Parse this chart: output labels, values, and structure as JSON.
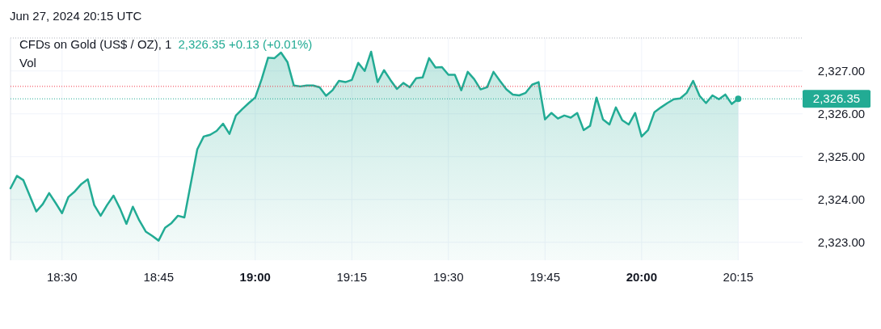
{
  "chart_data": {
    "type": "area",
    "title": "CFDs on Gold (US$ / OZ), 1",
    "subtitle": "Jun 27, 2024 20:15 UTC",
    "annotations": [
      "2,326.35  +0.13 (+0.01%)",
      "Vol"
    ],
    "x": [
      "2024-06-27T18:22",
      "2024-06-27T18:23",
      "2024-06-27T18:24",
      "2024-06-27T18:26",
      "2024-06-27T18:27",
      "2024-06-27T18:28",
      "2024-06-27T18:29",
      "2024-06-27T18:30",
      "2024-06-27T18:31",
      "2024-06-27T18:32",
      "2024-06-27T18:33",
      "2024-06-27T18:34",
      "2024-06-27T18:35",
      "2024-06-27T18:36",
      "2024-06-27T18:37",
      "2024-06-27T18:38",
      "2024-06-27T18:39",
      "2024-06-27T18:40",
      "2024-06-27T18:41",
      "2024-06-27T18:42",
      "2024-06-27T18:43",
      "2024-06-27T18:44",
      "2024-06-27T18:45",
      "2024-06-27T18:46",
      "2024-06-27T18:47",
      "2024-06-27T18:48",
      "2024-06-27T18:49",
      "2024-06-27T18:51",
      "2024-06-27T18:52",
      "2024-06-27T18:53",
      "2024-06-27T18:54",
      "2024-06-27T18:55",
      "2024-06-27T18:56",
      "2024-06-27T18:57",
      "2024-06-27T18:58",
      "2024-06-27T18:59",
      "2024-06-27T19:00",
      "2024-06-27T19:01",
      "2024-06-27T19:02",
      "2024-06-27T19:03",
      "2024-06-27T19:04",
      "2024-06-27T19:05",
      "2024-06-27T19:06",
      "2024-06-27T19:07",
      "2024-06-27T19:08",
      "2024-06-27T19:09",
      "2024-06-27T19:10",
      "2024-06-27T19:11",
      "2024-06-27T19:12",
      "2024-06-27T19:13",
      "2024-06-27T19:14",
      "2024-06-27T19:15",
      "2024-06-27T19:16",
      "2024-06-27T19:17",
      "2024-06-27T19:18",
      "2024-06-27T19:19",
      "2024-06-27T19:20",
      "2024-06-27T19:21",
      "2024-06-27T19:22",
      "2024-06-27T19:23",
      "2024-06-27T19:24",
      "2024-06-27T19:25",
      "2024-06-27T19:26",
      "2024-06-27T19:27",
      "2024-06-27T19:28",
      "2024-06-27T19:29",
      "2024-06-27T19:30",
      "2024-06-27T19:31",
      "2024-06-27T19:32",
      "2024-06-27T19:33",
      "2024-06-27T19:34",
      "2024-06-27T19:35",
      "2024-06-27T19:36",
      "2024-06-27T19:37",
      "2024-06-27T19:38",
      "2024-06-27T19:39",
      "2024-06-27T19:40",
      "2024-06-27T19:41",
      "2024-06-27T19:42",
      "2024-06-27T19:43",
      "2024-06-27T19:44",
      "2024-06-27T19:45",
      "2024-06-27T19:46",
      "2024-06-27T19:47",
      "2024-06-27T19:48",
      "2024-06-27T19:49",
      "2024-06-27T19:50",
      "2024-06-27T19:51",
      "2024-06-27T19:52",
      "2024-06-27T19:53",
      "2024-06-27T19:54",
      "2024-06-27T19:55",
      "2024-06-27T19:56",
      "2024-06-27T19:57",
      "2024-06-27T19:58",
      "2024-06-27T19:59",
      "2024-06-27T20:00",
      "2024-06-27T20:01",
      "2024-06-27T20:02",
      "2024-06-27T20:03",
      "2024-06-27T20:04",
      "2024-06-27T20:05",
      "2024-06-27T20:06",
      "2024-06-27T20:07",
      "2024-06-27T20:08",
      "2024-06-27T20:09",
      "2024-06-27T20:10",
      "2024-06-27T20:11",
      "2024-06-27T20:12",
      "2024-06-27T20:13",
      "2024-06-27T20:14",
      "2024-06-27T20:15"
    ],
    "series": [
      {
        "color": "#22ab94",
        "values": [
          2324.26,
          2324.55,
          2324.45,
          2323.72,
          2323.89,
          2324.15,
          2323.92,
          2323.68,
          2324.06,
          2324.19,
          2324.36,
          2324.47,
          2323.87,
          2323.62,
          2323.87,
          2324.09,
          2323.79,
          2323.43,
          2323.83,
          2323.51,
          2323.25,
          2323.15,
          2323.04,
          2323.34,
          2323.45,
          2323.62,
          2323.58,
          2325.17,
          2325.47,
          2325.51,
          2325.6,
          2325.77,
          2325.53,
          2325.96,
          2326.11,
          2326.25,
          2326.38,
          2326.81,
          2327.31,
          2327.3,
          2327.43,
          2327.21,
          2326.66,
          2326.64,
          2326.66,
          2326.66,
          2326.62,
          2326.42,
          2326.55,
          2326.77,
          2326.74,
          2326.79,
          2327.19,
          2327.0,
          2327.45,
          2326.74,
          2327.02,
          2326.79,
          2326.58,
          2326.72,
          2326.62,
          2326.83,
          2326.85,
          2327.3,
          2327.08,
          2327.09,
          2326.91,
          2326.91,
          2326.55,
          2326.98,
          2326.81,
          2326.57,
          2326.62,
          2326.98,
          2326.77,
          2326.57,
          2326.45,
          2326.43,
          2326.49,
          2326.68,
          2326.74,
          2325.87,
          2326.02,
          2325.89,
          2325.96,
          2325.91,
          2326.02,
          2325.62,
          2325.72,
          2326.38,
          2325.87,
          2325.75,
          2326.15,
          2325.85,
          2325.75,
          2326.02,
          2325.47,
          2325.62,
          2326.04,
          2326.15,
          2326.25,
          2326.34,
          2326.36,
          2326.49,
          2326.77,
          2326.42,
          2326.25,
          2326.43,
          2326.34,
          2326.45,
          2326.23,
          2326.35
        ]
      }
    ],
    "xlim": [
      "2024-06-27T18:22",
      "2024-06-27T20:25"
    ],
    "xticks": [
      {
        "value": "2024-06-27T18:30",
        "label": "18:30"
      },
      {
        "value": "2024-06-27T18:45",
        "label": "18:45"
      },
      {
        "value": "2024-06-27T19:00",
        "label": "19:00"
      },
      {
        "value": "2024-06-27T19:15",
        "label": "19:15"
      },
      {
        "value": "2024-06-27T19:30",
        "label": "19:30"
      },
      {
        "value": "2024-06-27T19:45",
        "label": "19:45"
      },
      {
        "value": "2024-06-27T20:00",
        "label": "20:00"
      },
      {
        "value": "2024-06-27T20:15",
        "label": "20:15"
      }
    ],
    "ylim": [
      2322.58,
      2327.77
    ],
    "yticks": [
      {
        "value": 2323,
        "label": "2,323.00"
      },
      {
        "value": 2324,
        "label": "2,324.00"
      },
      {
        "value": 2325,
        "label": "2,325.00"
      },
      {
        "value": 2326,
        "label": "2,326.00"
      },
      {
        "value": 2327,
        "label": "2,327.00"
      }
    ],
    "ref_lines": [
      {
        "axis": "y",
        "value": 2326.64,
        "color": "#f23645",
        "line_style": "dotted"
      },
      {
        "axis": "y",
        "value": 2326.35,
        "label": "2,326.35",
        "color": "#22ab94",
        "line_style": "dotted"
      }
    ],
    "grid": true,
    "legend": false
  }
}
